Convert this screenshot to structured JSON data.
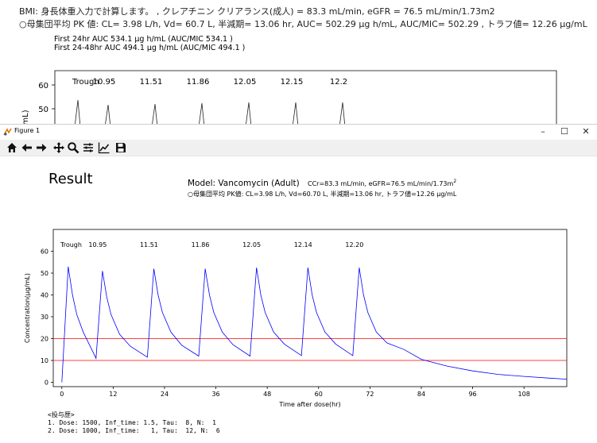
{
  "background_window": {
    "line1": "BMI: 身長体重入力で計算します。 , クレアチニン クリアランス(成人) = 83.3 mL/min, eGFR = 76.5 mL/min/1.73m2",
    "line2": "○母集団平均 PK 値: CL= 3.98 L/h, Vd= 60.7 L, 半減期= 13.06 hr, AUC= 502.29 μg h/mL, AUC/MIC= 502.29 , トラフ値= 12.26 μg/mL",
    "auc1": "First 24hr AUC 534.1 μg h/mL (AUC/MIC 534.1 )",
    "auc2": "First 24-48hr AUC 494.1 μg h/mL (AUC/MIC 494.1 )",
    "plot": {
      "trough_label": "Trough",
      "peak_labels": [
        "10.95",
        "11.51",
        "11.86",
        "12.05",
        "12.15",
        "12.2"
      ],
      "y_ticks": [
        "60",
        "50"
      ],
      "ylabel": "mL)"
    }
  },
  "figure_window": {
    "title": "Figure 1",
    "controls": {
      "minimize": "–",
      "maximize": "☐",
      "close": "✕"
    },
    "toolbar_icons": [
      "home-icon",
      "back-arrow-icon",
      "forward-arrow-icon",
      "pan-icon",
      "zoom-icon",
      "configure-subplots-icon",
      "edit-axis-icon",
      "save-icon"
    ]
  },
  "chart_data": {
    "type": "line",
    "title": "Result",
    "model_text": "Model: Vancomycin (Adult)",
    "clearance_text": "CCr=83.3 mL/min,  eGFR=76.5 mL/min/1.73m",
    "clearance_sup": "2",
    "pk_text": "○母集団平均 PK値: CL=3.98 L/h, Vd=60.70 L, 半減期=13.06 hr, トラフ値=12.26 μg/mL",
    "xlabel": "Time after dose(hr)",
    "ylabel": "Concentration(μg/mL)",
    "xlim": [
      -2,
      118
    ],
    "ylim": [
      -2,
      70
    ],
    "x_ticks": [
      0,
      12,
      24,
      36,
      48,
      60,
      72,
      84,
      96,
      108
    ],
    "y_ticks": [
      0,
      10,
      20,
      30,
      40,
      50,
      60
    ],
    "trough_label": "Trough",
    "trough_values": [
      "10.95",
      "11.51",
      "11.86",
      "12.05",
      "12.14",
      "12.20"
    ],
    "trough_label_x": [
      8,
      20,
      32,
      44,
      56,
      68
    ],
    "reference_lines": [
      10,
      20
    ],
    "series": [
      {
        "color": "#0000ff",
        "points": [
          [
            0,
            0
          ],
          [
            1.5,
            53
          ],
          [
            2.5,
            40
          ],
          [
            3.5,
            31
          ],
          [
            5,
            23
          ],
          [
            6.5,
            17
          ],
          [
            8,
            11
          ],
          [
            9.5,
            51
          ],
          [
            10.5,
            39
          ],
          [
            11.5,
            31
          ],
          [
            13.5,
            22
          ],
          [
            16,
            16.5
          ],
          [
            20,
            11.5
          ],
          [
            21.5,
            52
          ],
          [
            22.5,
            40
          ],
          [
            23.5,
            32
          ],
          [
            25.5,
            23
          ],
          [
            28,
            17
          ],
          [
            32,
            12
          ],
          [
            33.5,
            52
          ],
          [
            34.5,
            40
          ],
          [
            35.5,
            32
          ],
          [
            37.5,
            23
          ],
          [
            40,
            17.2
          ],
          [
            44,
            12
          ],
          [
            45.5,
            52.5
          ],
          [
            46.5,
            40
          ],
          [
            47.5,
            32
          ],
          [
            49.5,
            23
          ],
          [
            52,
            17.5
          ],
          [
            56,
            12.2
          ],
          [
            57.5,
            52.5
          ],
          [
            58.5,
            40
          ],
          [
            59.5,
            32
          ],
          [
            61.5,
            23
          ],
          [
            64,
            17.5
          ],
          [
            68,
            12.2
          ],
          [
            69.5,
            52.5
          ],
          [
            70.5,
            40
          ],
          [
            71.5,
            32
          ],
          [
            73.5,
            23
          ],
          [
            76,
            18
          ],
          [
            80,
            15
          ],
          [
            84,
            10.5
          ],
          [
            90,
            7.4
          ],
          [
            96,
            5.2
          ],
          [
            102,
            3.6
          ],
          [
            108,
            2.7
          ],
          [
            114,
            1.9
          ],
          [
            118,
            1.4
          ]
        ]
      }
    ]
  },
  "dose_history": {
    "header": "<投与歴>",
    "lines": [
      "1. Dose: 1500, Inf_time: 1.5, Tau:  8, N:  1",
      "2. Dose: 1000, Inf_time:   1, Tau:  12, N:  6"
    ]
  }
}
